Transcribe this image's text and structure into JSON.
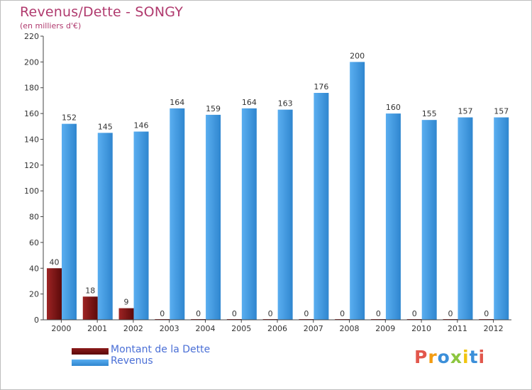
{
  "title": "Revenus/Dette - SONGY",
  "subtitle": "(en milliers d'€)",
  "logo_text": "Proxiti",
  "colors": {
    "dette": "#8b1a1a",
    "revenus": "#4a9fe0",
    "title": "#b03a6e",
    "legend_text": "#4a6fd6"
  },
  "chart_data": {
    "type": "bar",
    "title": "Revenus/Dette - SONGY",
    "subtitle": "(en milliers d'€)",
    "xlabel": "",
    "ylabel": "",
    "ylim": [
      0,
      220
    ],
    "yticks": [
      0,
      20,
      40,
      60,
      80,
      100,
      120,
      140,
      160,
      180,
      200,
      220
    ],
    "grid": false,
    "legend_position": "bottom-left",
    "categories": [
      "2000",
      "2001",
      "2002",
      "2003",
      "2004",
      "2005",
      "2006",
      "2007",
      "2008",
      "2009",
      "2010",
      "2011",
      "2012"
    ],
    "series": [
      {
        "name": "Montant de la Dette",
        "color": "#8b1a1a",
        "values": [
          40,
          18,
          9,
          0,
          0,
          0,
          0,
          0,
          0,
          0,
          0,
          0,
          0
        ]
      },
      {
        "name": "Revenus",
        "color": "#4a9fe0",
        "values": [
          152,
          145,
          146,
          164,
          159,
          164,
          163,
          176,
          200,
          160,
          155,
          157,
          157
        ]
      }
    ]
  }
}
